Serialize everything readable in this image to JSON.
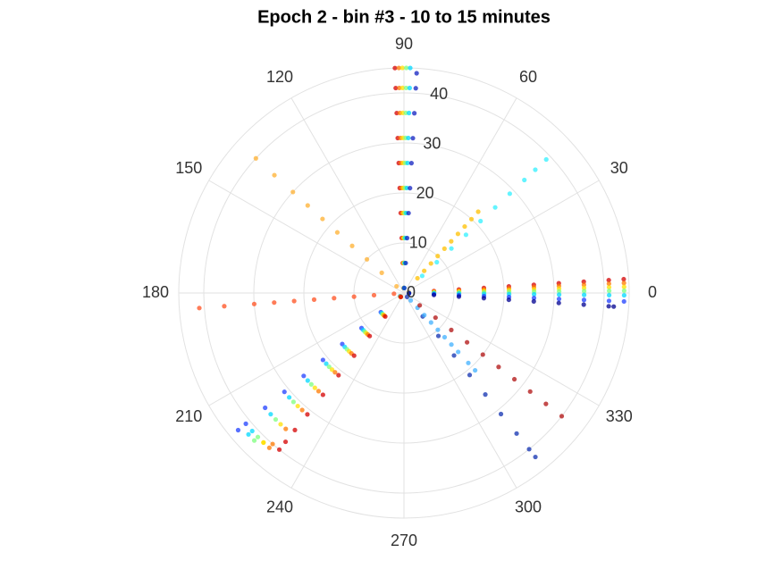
{
  "chart_data": {
    "type": "polar_scatter",
    "title": "Epoch 2 - bin #3 - 10 to 15 minutes",
    "rlim": [
      0,
      45
    ],
    "rticks": [
      0,
      10,
      20,
      30,
      40
    ],
    "thetaticks": [
      0,
      30,
      60,
      90,
      120,
      150,
      180,
      210,
      240,
      270,
      300,
      330
    ],
    "grid": true,
    "series": [
      {
        "color": "#d40000",
        "theta": 92.3,
        "r": [
          1,
          6,
          11,
          16,
          21,
          26,
          31,
          36,
          41,
          45
        ]
      },
      {
        "color": "#ff7a00",
        "theta": 91.3,
        "r": [
          1,
          6,
          11,
          16,
          21,
          26,
          31,
          36,
          41,
          45
        ]
      },
      {
        "color": "#ffe000",
        "theta": 90.4,
        "r": [
          1,
          6,
          11,
          16,
          21,
          26,
          31,
          36,
          41,
          45
        ]
      },
      {
        "color": "#7dff7d",
        "theta": 89.4,
        "r": [
          1,
          6,
          11,
          16,
          21,
          26,
          31,
          36,
          41,
          45
        ]
      },
      {
        "color": "#00d8ff",
        "theta": 88.4,
        "r": [
          1,
          6,
          11,
          16,
          21,
          26,
          31,
          36,
          41,
          45
        ]
      },
      {
        "color": "#1020c0",
        "theta": 86.7,
        "r": [
          1,
          6,
          11,
          16,
          21,
          26,
          31,
          36,
          41,
          44
        ]
      },
      {
        "color": "#d40000",
        "theta": 3.6,
        "r": [
          1,
          6,
          11,
          16,
          21,
          26,
          31,
          36,
          41,
          44
        ]
      },
      {
        "color": "#ff7a00",
        "theta": 2.6,
        "r": [
          1,
          6,
          11,
          16,
          21,
          26,
          31,
          36,
          41,
          44
        ]
      },
      {
        "color": "#ffe000",
        "theta": 1.6,
        "r": [
          1,
          6,
          11,
          16,
          21,
          26,
          31,
          36,
          41,
          44
        ]
      },
      {
        "color": "#7dff7d",
        "theta": 0.6,
        "r": [
          1,
          6,
          11,
          16,
          21,
          26,
          31,
          36,
          41,
          44
        ]
      },
      {
        "color": "#00d8ff",
        "theta": -0.6,
        "r": [
          1,
          6,
          11,
          16,
          21,
          26,
          31,
          36,
          41,
          44
        ]
      },
      {
        "color": "#2040ff",
        "theta": -2.2,
        "r": [
          1,
          6,
          11,
          16,
          21,
          26,
          31,
          36,
          41,
          44
        ]
      },
      {
        "color": "#000090",
        "theta": -3.7,
        "r": [
          1,
          6,
          11,
          16,
          21,
          26,
          31,
          36,
          41,
          42
        ]
      },
      {
        "color": "#2040ff",
        "theta": 219.6,
        "r": [
          1,
          6,
          11,
          16,
          21,
          26,
          31,
          36,
          41,
          43
        ]
      },
      {
        "color": "#00d8ff",
        "theta": 222.3,
        "r": [
          1,
          6,
          11,
          16,
          21,
          26,
          31,
          36,
          41,
          42
        ]
      },
      {
        "color": "#7dff7d",
        "theta": 224.6,
        "r": [
          1,
          6,
          11,
          16,
          21,
          26,
          31,
          36,
          41,
          42
        ]
      },
      {
        "color": "#ffe000",
        "theta": 226.8,
        "r": [
          1,
          6,
          11,
          16,
          21,
          26,
          31,
          36,
          41,
          41
        ]
      },
      {
        "color": "#ff7a00",
        "theta": 229.0,
        "r": [
          1,
          6,
          11,
          16,
          21,
          26,
          31,
          36,
          40,
          41
        ]
      },
      {
        "color": "#d40000",
        "theta": 231.5,
        "r": [
          1,
          6,
          11,
          16,
          21,
          26,
          31,
          35,
          38,
          40
        ]
      },
      {
        "color": "#ffb030",
        "theta": 137.7,
        "r": [
          2,
          6,
          10,
          14,
          18,
          22,
          26,
          30,
          35,
          40
        ]
      },
      {
        "color": "#ff5020",
        "theta": 184.2,
        "r": [
          2,
          6,
          10,
          14,
          18,
          22,
          26,
          30,
          36,
          41
        ]
      },
      {
        "color": "#30f0ff",
        "theta": 43.2,
        "r": [
          5,
          9,
          13,
          17,
          21,
          25,
          29,
          33,
          36,
          39
        ]
      },
      {
        "color": "#ffc000",
        "theta": 47.6,
        "r": [
          4,
          6,
          8,
          10,
          12,
          14,
          16,
          18,
          20,
          22
        ]
      },
      {
        "color": "#1030b0",
        "theta": 308.7,
        "r": [
          1,
          6,
          11,
          16,
          21,
          26,
          31,
          36,
          40,
          42
        ]
      },
      {
        "color": "#40b0ff",
        "theta": 312.6,
        "r": [
          2,
          4,
          6,
          8,
          10,
          12,
          14,
          16,
          19,
          21
        ]
      },
      {
        "color": "#b01010",
        "theta": 322.0,
        "r": [
          4,
          8,
          12,
          16,
          20,
          24,
          28,
          32,
          36,
          40
        ]
      }
    ]
  }
}
